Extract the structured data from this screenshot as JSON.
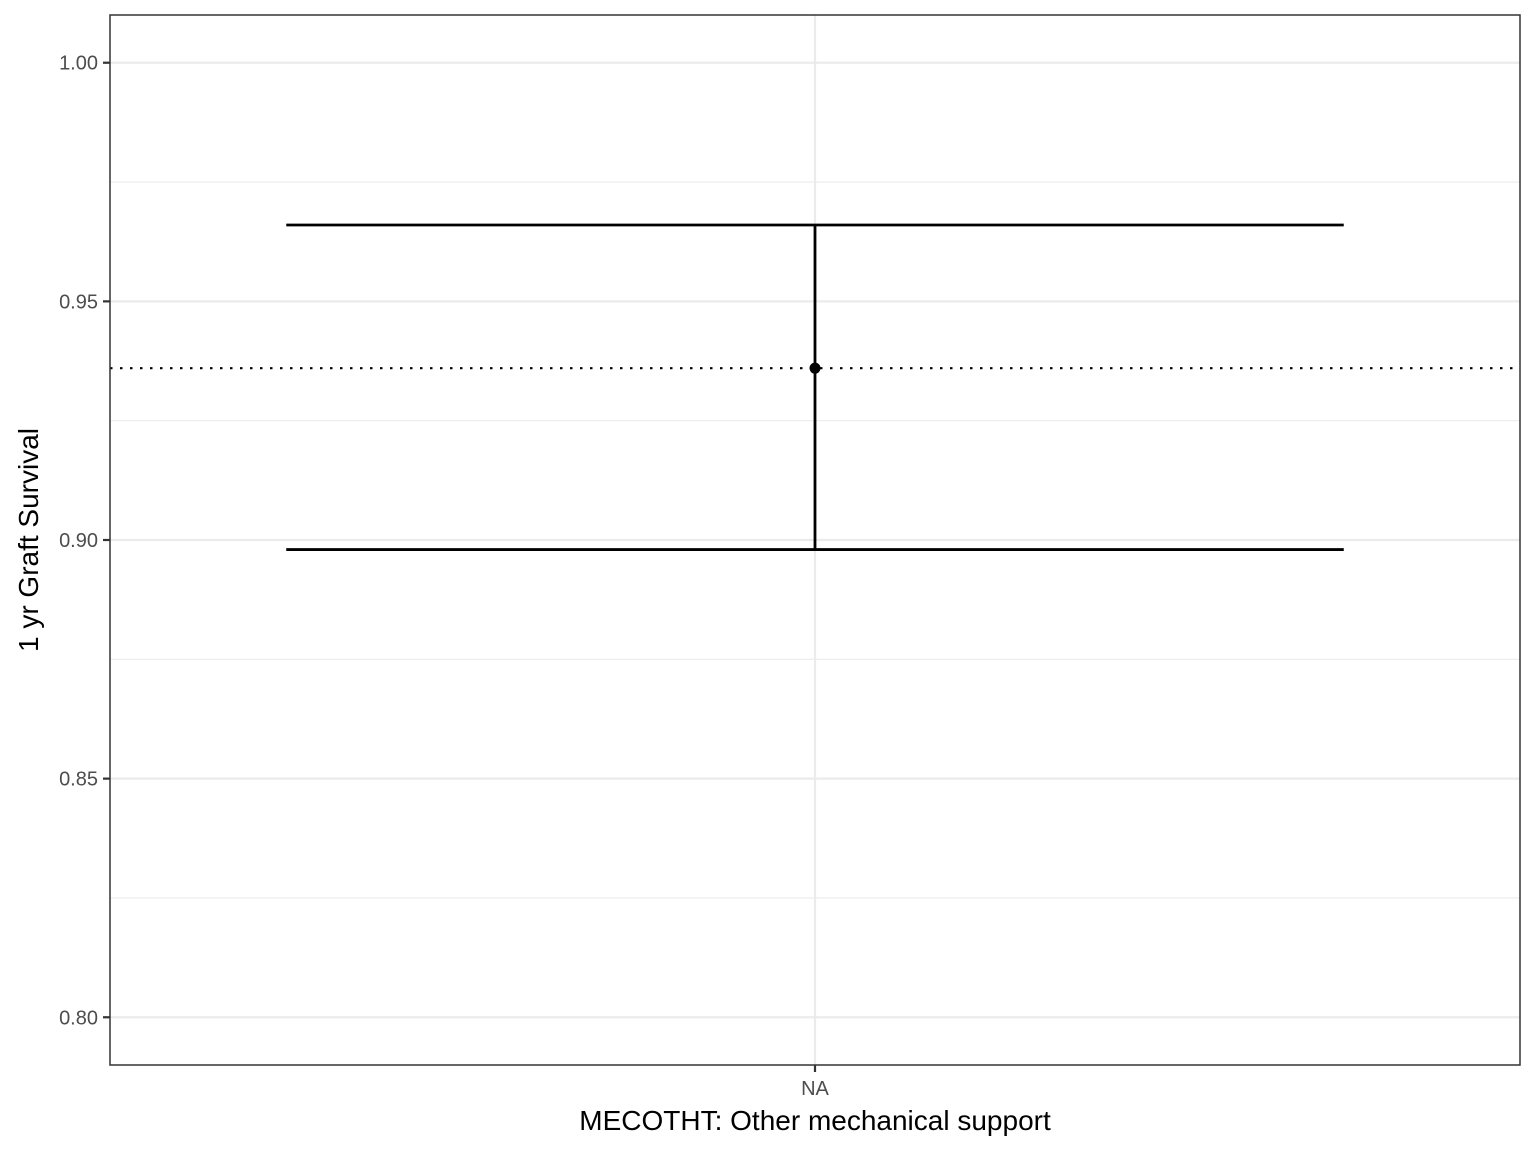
{
  "chart_data": {
    "type": "errorbar",
    "title": "",
    "xlabel": "MECOTHT: Other mechanical support",
    "ylabel": "1 yr Graft Survival",
    "categories": [
      "NA"
    ],
    "estimate": [
      0.936
    ],
    "lower": [
      0.898
    ],
    "upper": [
      0.966
    ],
    "reference_line": 0.936,
    "reference_line_style": "dotted",
    "ylim": [
      0.79,
      1.01
    ],
    "yticks": [
      0.8,
      0.85,
      0.9,
      0.95,
      1.0
    ],
    "ytick_labels": [
      "0.80",
      "0.85",
      "0.90",
      "0.95",
      "1.00"
    ],
    "yminor": [
      0.825,
      0.875,
      0.925,
      0.975
    ],
    "grid": true,
    "legend": "none",
    "colors": {
      "series": "#000000",
      "grid": "#ebebeb",
      "border": "#333333",
      "tick_text": "#4d4d4d"
    }
  }
}
